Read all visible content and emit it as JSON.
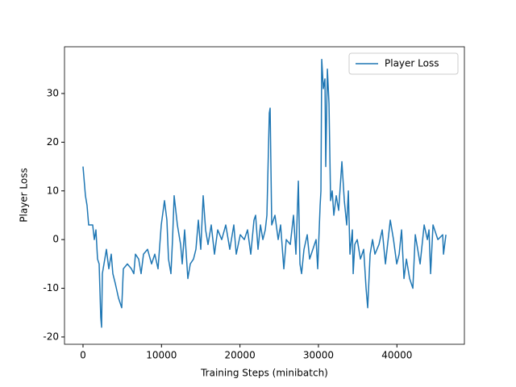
{
  "chart_data": {
    "type": "line",
    "xlabel": "Training Steps (minibatch)",
    "ylabel": "Player Loss",
    "x": [
      0,
      308,
      514,
      719,
      1233,
      1439,
      1644,
      1850,
      2055,
      2261,
      2364,
      2466,
      2775,
      2980,
      3289,
      3597,
      3802,
      4111,
      4522,
      4933,
      5139,
      5652,
      6166,
      6474,
      6680,
      7091,
      7399,
      7708,
      8222,
      8735,
      9147,
      9558,
      9969,
      10380,
      10688,
      10894,
      11202,
      11407,
      11613,
      12024,
      12435,
      12641,
      12949,
      13154,
      13360,
      13668,
      14079,
      14388,
      14696,
      15004,
      15313,
      15621,
      15929,
      16340,
      16752,
      17163,
      17676,
      18190,
      18704,
      19218,
      19526,
      20040,
      20554,
      20965,
      21376,
      21787,
      21993,
      22301,
      22610,
      22918,
      23226,
      23432,
      23740,
      23843,
      24048,
      24459,
      24870,
      25179,
      25590,
      25898,
      26412,
      26823,
      27131,
      27440,
      27645,
      27851,
      28159,
      28570,
      28878,
      29289,
      29700,
      29906,
      30214,
      30317,
      30420,
      30625,
      30831,
      30933,
      31139,
      31344,
      31550,
      31755,
      31961,
      32269,
      32577,
      32988,
      33297,
      33605,
      33811,
      34016,
      34324,
      34427,
      34633,
      34941,
      35352,
      35763,
      36071,
      36277,
      36585,
      36894,
      37202,
      37716,
      38127,
      38538,
      39154,
      39566,
      39977,
      40285,
      40594,
      40902,
      41210,
      41621,
      42032,
      42341,
      42649,
      42957,
      43471,
      43882,
      44088,
      44293,
      44601,
      45218,
      45835,
      45937,
      46245
    ],
    "series": [
      {
        "name": "Player Loss",
        "color": "#1f77b4",
        "values": [
          15,
          9,
          7,
          3,
          3,
          0,
          2,
          -4,
          -5,
          -16,
          -18,
          -7,
          -4,
          -2,
          -6,
          -3,
          -7,
          -9,
          -12,
          -14,
          -6,
          -5,
          -6,
          -7,
          -3,
          -4,
          -7,
          -3,
          -2,
          -5,
          -3,
          -6,
          3,
          8,
          4,
          -4,
          -7,
          0,
          9,
          3,
          -1,
          -5,
          2,
          -3,
          -8,
          -5,
          -4,
          -2,
          4,
          -2,
          9,
          2,
          -1,
          3,
          -3,
          2,
          0,
          3,
          -2,
          3,
          -3,
          1,
          0,
          2,
          -3,
          4,
          5,
          -2,
          3,
          0,
          2,
          5,
          26,
          27,
          3,
          5,
          0,
          3,
          -6,
          0,
          -1,
          5,
          -3,
          12,
          -5,
          -7,
          -2,
          1,
          -4,
          -2,
          0,
          -6,
          7,
          10,
          37,
          31,
          33,
          15,
          35,
          28,
          8,
          10,
          5,
          9,
          6,
          16,
          8,
          3,
          10,
          -3,
          2,
          -7,
          -1,
          0,
          -4,
          -2,
          -10,
          -14,
          -3,
          0,
          -3,
          -1,
          2,
          -5,
          4,
          0,
          -5,
          -3,
          2,
          -8,
          -4,
          -8,
          -10,
          1,
          -2,
          -5,
          3,
          0,
          2,
          -7,
          3,
          0,
          1,
          -3,
          1
        ]
      }
    ],
    "xlim": [
      -2360,
      48600
    ],
    "ylim": [
      -21.5,
      39.6
    ],
    "xticks": [
      0,
      10000,
      20000,
      30000,
      40000
    ],
    "yticks": [
      -20,
      -10,
      0,
      10,
      20,
      30
    ],
    "legend": "upper right",
    "grid": false
  }
}
